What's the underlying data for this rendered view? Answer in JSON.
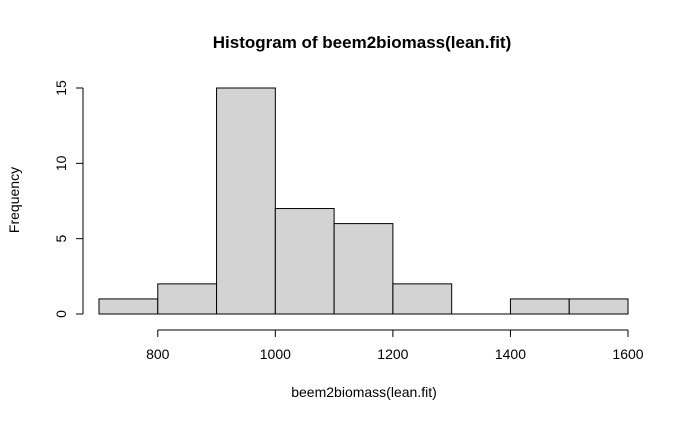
{
  "chart_data": {
    "type": "bar",
    "title": "Histogram of beem2biomass(lean.fit)",
    "xlabel": "beem2biomass(lean.fit)",
    "ylabel": "Frequency",
    "bins": [
      {
        "from": 700,
        "to": 800,
        "count": 1
      },
      {
        "from": 800,
        "to": 900,
        "count": 2
      },
      {
        "from": 900,
        "to": 1000,
        "count": 15
      },
      {
        "from": 1000,
        "to": 1100,
        "count": 7
      },
      {
        "from": 1100,
        "to": 1200,
        "count": 6
      },
      {
        "from": 1200,
        "to": 1300,
        "count": 2
      },
      {
        "from": 1300,
        "to": 1400,
        "count": 0
      },
      {
        "from": 1400,
        "to": 1500,
        "count": 1
      },
      {
        "from": 1500,
        "to": 1600,
        "count": 1
      }
    ],
    "xlim": [
      700,
      1600
    ],
    "ylim": [
      0,
      15
    ],
    "x_ticks": [
      800,
      1000,
      1200,
      1400,
      1600
    ],
    "x_tick_labels": [
      "800",
      "1000",
      "1200",
      "1400",
      "1600"
    ],
    "y_ticks": [
      0,
      5,
      10,
      15
    ],
    "y_tick_labels": [
      "0",
      "5",
      "10",
      "15"
    ],
    "bar_fill": "#d3d3d3",
    "bar_stroke": "#000000",
    "grid": false,
    "legend": "none"
  }
}
